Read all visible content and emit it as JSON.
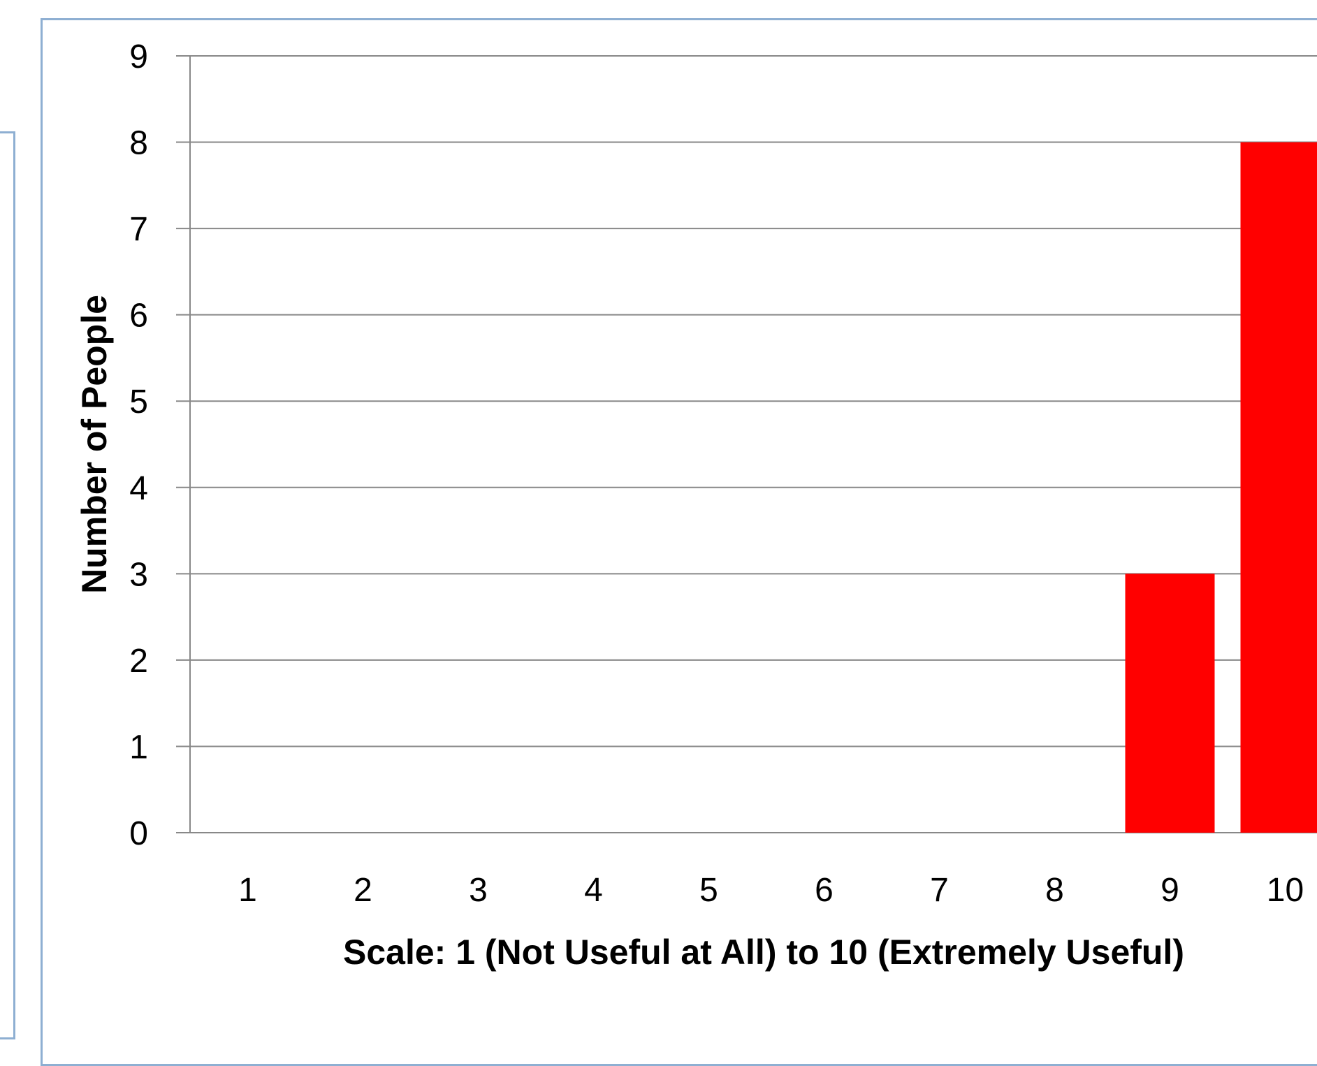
{
  "colors": {
    "bar": "#ff0000",
    "frame": "#8eafd2",
    "grid": "#888888"
  },
  "chart_data": {
    "type": "bar",
    "categories": [
      "1",
      "2",
      "3",
      "4",
      "5",
      "6",
      "7",
      "8",
      "9",
      "10"
    ],
    "values": [
      0,
      0,
      0,
      0,
      0,
      0,
      0,
      0,
      3,
      8
    ],
    "title": "",
    "xlabel": "Scale: 1 (Not Useful at All) to 10 (Extremely Useful)",
    "ylabel": "Number of People",
    "ylim": [
      0,
      9
    ],
    "yticks": [
      "0",
      "1",
      "2",
      "3",
      "4",
      "5",
      "6",
      "7",
      "8",
      "9"
    ],
    "grid": true,
    "legend": "none"
  }
}
